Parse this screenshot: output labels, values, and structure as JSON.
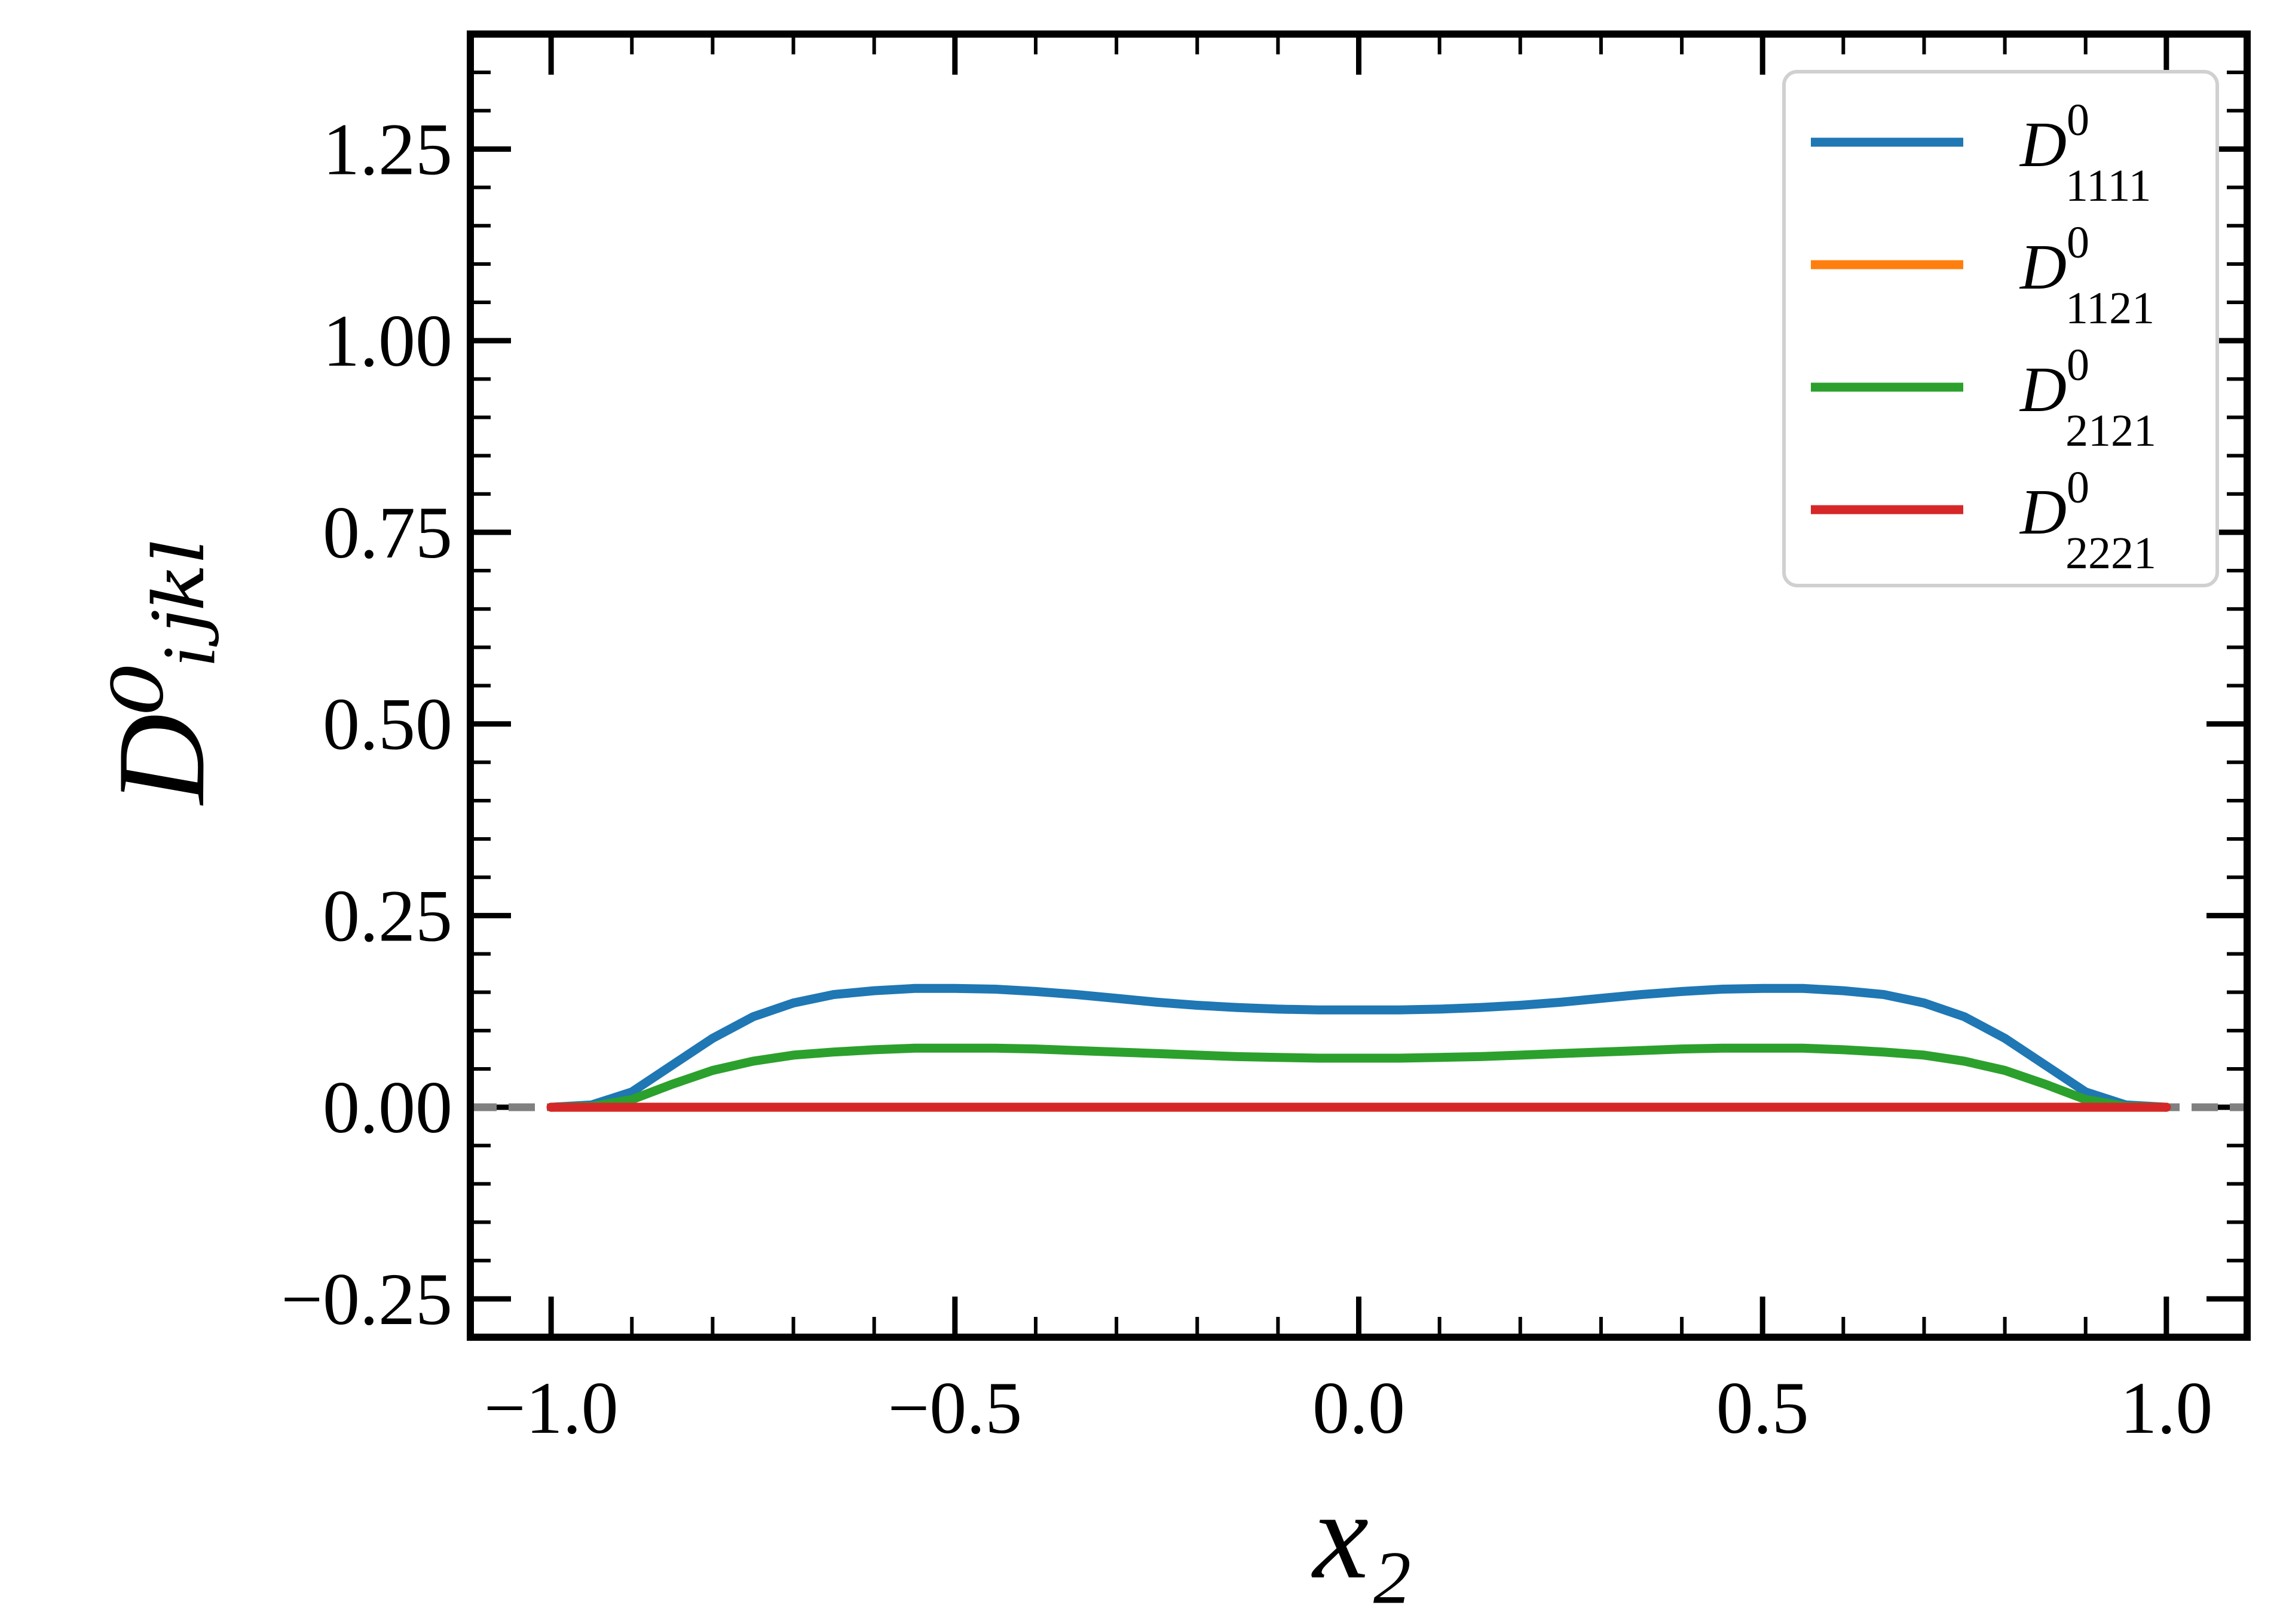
{
  "chart_data": {
    "type": "line",
    "xlabel": "x₂",
    "ylabel": "D⁰ᵢⱼₖₗ",
    "xlim": [
      -1.1,
      1.1
    ],
    "ylim": [
      -0.3,
      1.4
    ],
    "xticks": [
      {
        "value": -1.0,
        "label": "−1.0"
      },
      {
        "value": -0.5,
        "label": "−0.5"
      },
      {
        "value": 0.0,
        "label": "0.0"
      },
      {
        "value": 0.5,
        "label": "0.5"
      },
      {
        "value": 1.0,
        "label": "1.0"
      }
    ],
    "yticks": [
      {
        "value": -0.25,
        "label": "−0.25"
      },
      {
        "value": 0.0,
        "label": "0.00"
      },
      {
        "value": 0.25,
        "label": "0.25"
      },
      {
        "value": 0.5,
        "label": "0.50"
      },
      {
        "value": 0.75,
        "label": "0.75"
      },
      {
        "value": 1.0,
        "label": "1.00"
      },
      {
        "value": 1.25,
        "label": "1.25"
      }
    ],
    "x_minor_step": 0.1,
    "y_minor_step": 0.05,
    "grid": false,
    "legend_position": "top-right",
    "reference_line": {
      "y": 0.0,
      "style": "dashed",
      "color": "#808080"
    },
    "x": [
      -1.0,
      -0.95,
      -0.9,
      -0.85,
      -0.8,
      -0.75,
      -0.7,
      -0.65,
      -0.6,
      -0.55,
      -0.5,
      -0.45,
      -0.4,
      -0.35,
      -0.3,
      -0.25,
      -0.2,
      -0.15,
      -0.1,
      -0.05,
      0.0,
      0.05,
      0.1,
      0.15,
      0.2,
      0.25,
      0.3,
      0.35,
      0.4,
      0.45,
      0.5,
      0.55,
      0.6,
      0.65,
      0.7,
      0.75,
      0.8,
      0.85,
      0.9,
      0.95,
      1.0
    ],
    "series": [
      {
        "name": "D⁰₁₁₁₁",
        "legend_base": "D",
        "legend_sup": "0",
        "legend_sub": "1111",
        "color": "#1f77b4",
        "values": [
          0.0,
          0.003,
          0.02,
          0.055,
          0.09,
          0.118,
          0.136,
          0.147,
          0.152,
          0.155,
          0.155,
          0.154,
          0.151,
          0.147,
          0.142,
          0.137,
          0.133,
          0.13,
          0.128,
          0.127,
          0.127,
          0.127,
          0.128,
          0.13,
          0.133,
          0.137,
          0.142,
          0.147,
          0.151,
          0.154,
          0.155,
          0.155,
          0.152,
          0.147,
          0.136,
          0.118,
          0.09,
          0.055,
          0.02,
          0.003,
          0.0
        ]
      },
      {
        "name": "D⁰₁₁₂₁",
        "legend_base": "D",
        "legend_sup": "0",
        "legend_sub": "1121",
        "color": "#ff7f0e",
        "values": [
          0.0,
          0.0,
          0.0,
          0.0,
          0.0,
          0.0,
          0.0,
          0.0,
          0.0,
          0.0,
          0.0,
          0.0,
          0.0,
          0.0,
          0.0,
          0.0,
          0.0,
          0.0,
          0.0,
          0.0,
          0.0,
          0.0,
          0.0,
          0.0,
          0.0,
          0.0,
          0.0,
          0.0,
          0.0,
          0.0,
          0.0,
          0.0,
          0.0,
          0.0,
          0.0,
          0.0,
          0.0,
          0.0,
          0.0,
          0.0,
          0.0
        ]
      },
      {
        "name": "D⁰₂₁₂₁",
        "legend_base": "D",
        "legend_sup": "0",
        "legend_sub": "2121",
        "color": "#2ca02c",
        "values": [
          0.0,
          0.001,
          0.01,
          0.03,
          0.048,
          0.06,
          0.068,
          0.072,
          0.075,
          0.077,
          0.077,
          0.077,
          0.076,
          0.074,
          0.072,
          0.07,
          0.068,
          0.066,
          0.065,
          0.064,
          0.064,
          0.064,
          0.065,
          0.066,
          0.068,
          0.07,
          0.072,
          0.074,
          0.076,
          0.077,
          0.077,
          0.077,
          0.075,
          0.072,
          0.068,
          0.06,
          0.048,
          0.03,
          0.01,
          0.001,
          0.0
        ]
      },
      {
        "name": "D⁰₂₂₂₁",
        "legend_base": "D",
        "legend_sup": "0",
        "legend_sub": "2221",
        "color": "#d62728",
        "values": [
          0.0,
          0.0,
          0.0,
          0.0,
          0.0,
          0.0,
          0.0,
          0.0,
          0.0,
          0.0,
          0.0,
          0.0,
          0.0,
          0.0,
          0.0,
          0.0,
          0.0,
          0.0,
          0.0,
          0.0,
          0.0,
          0.0,
          0.0,
          0.0,
          0.0,
          0.0,
          0.0,
          0.0,
          0.0,
          0.0,
          0.0,
          0.0,
          0.0,
          0.0,
          0.0,
          0.0,
          0.0,
          0.0,
          0.0,
          0.0,
          0.0
        ]
      }
    ]
  }
}
